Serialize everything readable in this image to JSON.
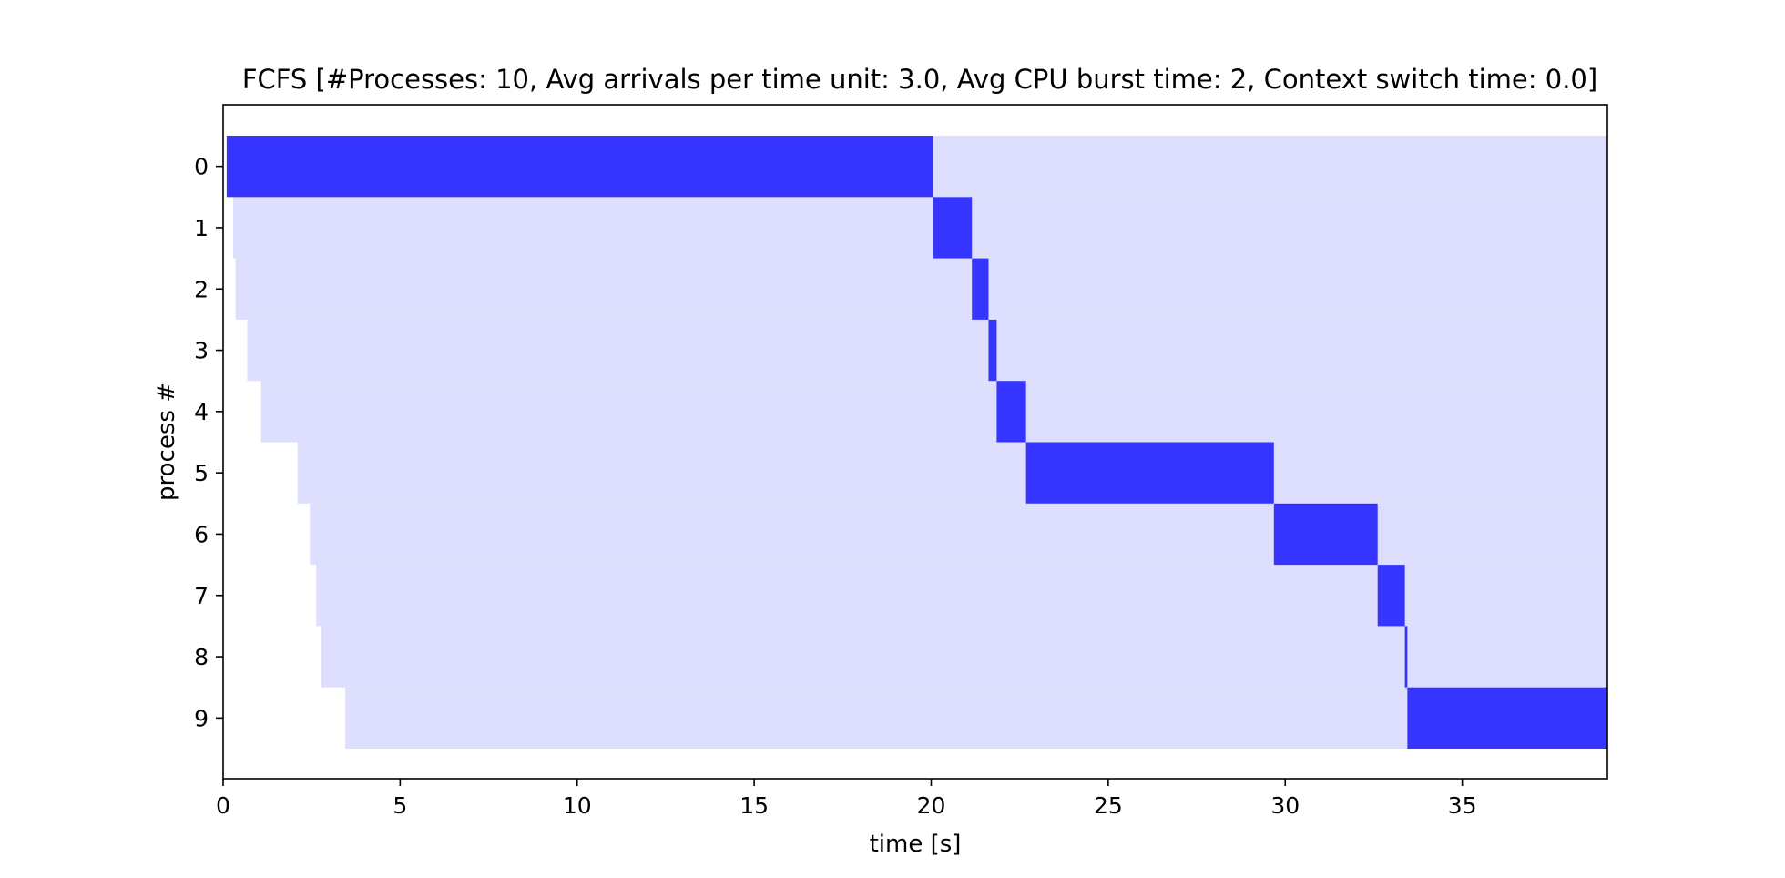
{
  "chart_data": {
    "type": "bar",
    "orientation": "horizontal-gantt",
    "title": "FCFS [#Processes: 10, Avg arrivals per time unit: 3.0, Avg CPU burst time: 2, Context switch time: 0.0]",
    "xlabel": "time [s]",
    "ylabel": "process #",
    "xlim": [
      0,
      39.1
    ],
    "x_ticks": [
      0,
      5,
      10,
      15,
      20,
      25,
      30,
      35
    ],
    "categories": [
      "0",
      "1",
      "2",
      "3",
      "4",
      "5",
      "6",
      "7",
      "8",
      "9"
    ],
    "grid": false,
    "legend": "none",
    "colors": {
      "running": "#3535ff",
      "waiting": "#dedefe",
      "axis": "#000000"
    },
    "series": [
      {
        "values": [
          {
            "process": 0,
            "arrival": 0.1,
            "start": 0.1,
            "end": 20.05
          },
          {
            "process": 1,
            "arrival": 0.28,
            "start": 20.05,
            "end": 21.15
          },
          {
            "process": 2,
            "arrival": 0.35,
            "start": 21.15,
            "end": 21.62
          },
          {
            "process": 3,
            "arrival": 0.68,
            "start": 21.62,
            "end": 21.85
          },
          {
            "process": 4,
            "arrival": 1.07,
            "start": 21.85,
            "end": 22.68
          },
          {
            "process": 5,
            "arrival": 2.1,
            "start": 22.68,
            "end": 29.68
          },
          {
            "process": 6,
            "arrival": 2.45,
            "start": 29.68,
            "end": 32.61
          },
          {
            "process": 7,
            "arrival": 2.63,
            "start": 32.61,
            "end": 33.38
          },
          {
            "process": 8,
            "arrival": 2.77,
            "start": 33.38,
            "end": 33.45
          },
          {
            "process": 9,
            "arrival": 3.45,
            "start": 33.45,
            "end": 39.1
          }
        ]
      }
    ]
  }
}
